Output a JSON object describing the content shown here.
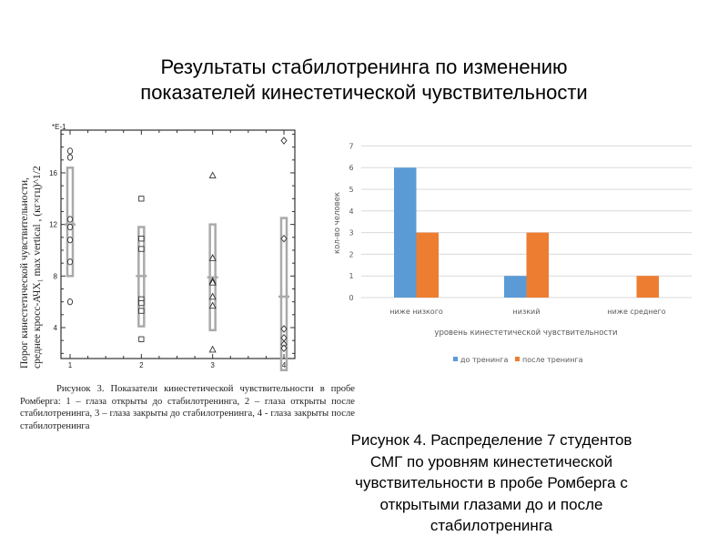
{
  "slide": {
    "title_line1": "Результаты стабилотренинга по изменению",
    "title_line2": "показателей кинестетической чувствительности",
    "caption_left": "Рисунок 3. Показатели кинестетической чувствительности в пробе Ромберга: 1 – глаза открыты до стабилотренинга, 2 – глаза открыты после стабилотренинга, 3 – глаза закрыты до стабилотренинга, 4 - глаза закрыты после стабилотренинга",
    "caption_right_lines": [
      "Рисунок 4. Распределение 7 студентов",
      "СМГ по уровням кинестетической",
      "чувствительности в пробе Ромберга с",
      "открытыми глазами до и после",
      "стабилотренинга"
    ]
  },
  "chart_data": [
    {
      "type": "scatter",
      "ylabel_line1": "Порог      кинестетической      чувствительности,",
      "ylabel_line2": "среднее кросс-АЧХ₁ max vertical , (кг×гц)^1/2",
      "y_multiplier": "*E-1",
      "xticks": [
        "1",
        "2",
        "3",
        "4"
      ],
      "yticks": [
        "4",
        "8",
        "12",
        "16"
      ],
      "xlim": [
        0.87,
        4.15
      ],
      "ylim": [
        1.6,
        19.3
      ],
      "series": [
        {
          "x": 1,
          "marker": "circle",
          "values": [
            17.7,
            17.2,
            12.4,
            11.8,
            10.8,
            9.1,
            6.0
          ],
          "box": [
            8.0,
            16.4
          ],
          "mean": 12.0
        },
        {
          "x": 2,
          "marker": "square",
          "values": [
            14.0,
            10.9,
            10.1,
            6.2,
            5.9,
            5.3,
            3.1
          ],
          "box": [
            4.1,
            11.8
          ],
          "mean": 8.0
        },
        {
          "x": 3,
          "marker": "triangle",
          "values": [
            15.8,
            9.4,
            7.6,
            7.5,
            6.4,
            5.7,
            2.3
          ],
          "box": [
            3.8,
            12.0
          ],
          "mean": 7.9
        },
        {
          "x": 4,
          "marker": "diamond",
          "values": [
            18.5,
            10.9,
            3.9,
            3.2,
            2.7,
            2.4
          ],
          "box": [
            0.7,
            12.5
          ],
          "mean": 6.4
        }
      ],
      "colors": {
        "box": "#aaaaaa",
        "marker": "#333333"
      }
    },
    {
      "type": "bar",
      "categories": [
        "ниже низкого",
        "низкий",
        "ниже среднего"
      ],
      "series": [
        {
          "name": "до тренинга",
          "values": [
            6,
            1,
            0
          ],
          "color": "#5b9bd5"
        },
        {
          "name": "после тренинга",
          "values": [
            3,
            3,
            1
          ],
          "color": "#ed7d31"
        }
      ],
      "xlabel": "уровень кинестетической чувствительности",
      "ylabel": "кол-во человек",
      "yticks": [
        "0",
        "1",
        "2",
        "3",
        "4",
        "5",
        "6",
        "7"
      ],
      "ylim": [
        0,
        7
      ],
      "grid": true,
      "legend": "bottom"
    }
  ]
}
